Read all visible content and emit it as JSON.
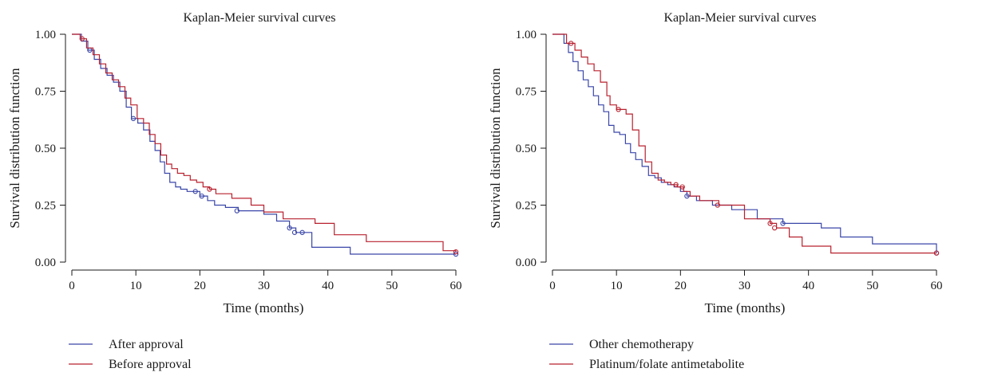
{
  "chart_data": [
    {
      "type": "line",
      "title": "Kaplan-Meier survival curves",
      "xlabel": "Time (months)",
      "ylabel": "Survival distribution function",
      "xlim": [
        0,
        60
      ],
      "ylim": [
        0,
        1
      ],
      "xticks": [
        "0",
        "10",
        "20",
        "30",
        "40",
        "50",
        "60"
      ],
      "yticks": [
        "0.00",
        "0.25",
        "0.50",
        "0.75",
        "1.00"
      ],
      "legend_position": "bottom-left",
      "series": [
        {
          "name": "After approval",
          "color": "#3a46a8",
          "x": [
            0,
            1.5,
            2.5,
            3.5,
            4.5,
            5.5,
            6.5,
            7.5,
            8.5,
            9.3,
            10.3,
            11.2,
            12.2,
            13.0,
            13.8,
            14.5,
            15.3,
            16.2,
            17.0,
            18.0,
            19.0,
            20.0,
            21.2,
            22.3,
            24.0,
            26.0,
            30.0,
            32.0,
            34.0,
            35.0,
            37.5,
            43.5,
            60.0
          ],
          "y": [
            1.0,
            0.97,
            0.93,
            0.89,
            0.85,
            0.82,
            0.79,
            0.75,
            0.68,
            0.63,
            0.61,
            0.58,
            0.53,
            0.49,
            0.44,
            0.39,
            0.35,
            0.33,
            0.32,
            0.31,
            0.31,
            0.29,
            0.27,
            0.25,
            0.24,
            0.225,
            0.21,
            0.18,
            0.15,
            0.13,
            0.065,
            0.035,
            0.035
          ],
          "censored_x": [
            2.8,
            9.6,
            19.3,
            20.3,
            25.8,
            34.0,
            34.8,
            36.0,
            60.0
          ],
          "censored_y": [
            0.93,
            0.63,
            0.31,
            0.29,
            0.225,
            0.15,
            0.13,
            0.13,
            0.035
          ]
        },
        {
          "name": "Before approval",
          "color": "#b8202e",
          "x": [
            0,
            1.3,
            2.3,
            3.3,
            4.3,
            5.3,
            6.3,
            7.3,
            8.3,
            9.2,
            10.2,
            11.2,
            12.1,
            13.0,
            13.9,
            14.8,
            15.6,
            16.5,
            17.5,
            18.5,
            19.5,
            20.5,
            21.5,
            22.5,
            25.0,
            28.0,
            30.0,
            33.0,
            38.0,
            41.0,
            46.0,
            58.0,
            60.0
          ],
          "y": [
            1.0,
            0.98,
            0.94,
            0.91,
            0.87,
            0.83,
            0.8,
            0.77,
            0.72,
            0.69,
            0.63,
            0.61,
            0.56,
            0.52,
            0.47,
            0.43,
            0.41,
            0.39,
            0.38,
            0.36,
            0.35,
            0.33,
            0.32,
            0.3,
            0.28,
            0.25,
            0.22,
            0.19,
            0.17,
            0.12,
            0.09,
            0.05,
            0.045
          ],
          "censored_x": [
            1.6,
            21.5,
            60.0
          ],
          "censored_y": [
            0.98,
            0.32,
            0.045
          ]
        }
      ]
    },
    {
      "type": "line",
      "title": "Kaplan-Meier survival curves",
      "xlabel": "Time (months)",
      "ylabel": "Survival distribution function",
      "xlim": [
        0,
        60
      ],
      "ylim": [
        0,
        1
      ],
      "xticks": [
        "0",
        "10",
        "20",
        "30",
        "40",
        "50",
        "60"
      ],
      "yticks": [
        "0.00",
        "0.25",
        "0.50",
        "0.75",
        "1.00"
      ],
      "legend_position": "bottom-left",
      "series": [
        {
          "name": "Other chemotherapy",
          "color": "#3a46a8",
          "x": [
            0,
            1.8,
            2.5,
            3.2,
            4.0,
            4.8,
            5.6,
            6.4,
            7.2,
            8.0,
            8.8,
            9.6,
            10.5,
            11.4,
            12.2,
            13.0,
            14.0,
            15.0,
            16.0,
            17.0,
            18.0,
            19.0,
            20.0,
            21.0,
            22.5,
            25.0,
            28.0,
            32.0,
            36.0,
            42.0,
            45.0,
            50.0,
            60.0
          ],
          "y": [
            1.0,
            0.96,
            0.92,
            0.88,
            0.84,
            0.8,
            0.77,
            0.73,
            0.69,
            0.66,
            0.6,
            0.57,
            0.56,
            0.52,
            0.48,
            0.45,
            0.42,
            0.38,
            0.37,
            0.35,
            0.34,
            0.33,
            0.31,
            0.29,
            0.27,
            0.25,
            0.23,
            0.19,
            0.17,
            0.15,
            0.11,
            0.08,
            0.04
          ],
          "censored_x": [
            21.0,
            36.0,
            60.0
          ],
          "censored_y": [
            0.29,
            0.17,
            0.04
          ]
        },
        {
          "name": "Platinum/folate antimetabolite",
          "color": "#b8202e",
          "x": [
            0,
            2.2,
            3.5,
            4.5,
            5.5,
            6.5,
            7.5,
            8.5,
            9.0,
            10.0,
            11.5,
            12.5,
            13.5,
            14.5,
            15.5,
            16.5,
            17.5,
            18.5,
            19.5,
            20.5,
            21.5,
            23.0,
            26.0,
            30.0,
            34.0,
            35.0,
            37.0,
            39.0,
            43.5,
            60.0
          ],
          "y": [
            1.0,
            0.96,
            0.93,
            0.9,
            0.87,
            0.84,
            0.79,
            0.73,
            0.69,
            0.67,
            0.65,
            0.58,
            0.51,
            0.44,
            0.39,
            0.36,
            0.35,
            0.34,
            0.33,
            0.31,
            0.29,
            0.27,
            0.25,
            0.19,
            0.17,
            0.15,
            0.11,
            0.07,
            0.04,
            0.04
          ],
          "censored_x": [
            2.9,
            10.3,
            19.3,
            20.3,
            25.8,
            34.0,
            34.7,
            60.0
          ],
          "censored_y": [
            0.96,
            0.67,
            0.34,
            0.33,
            0.25,
            0.17,
            0.15,
            0.04
          ]
        }
      ]
    }
  ]
}
